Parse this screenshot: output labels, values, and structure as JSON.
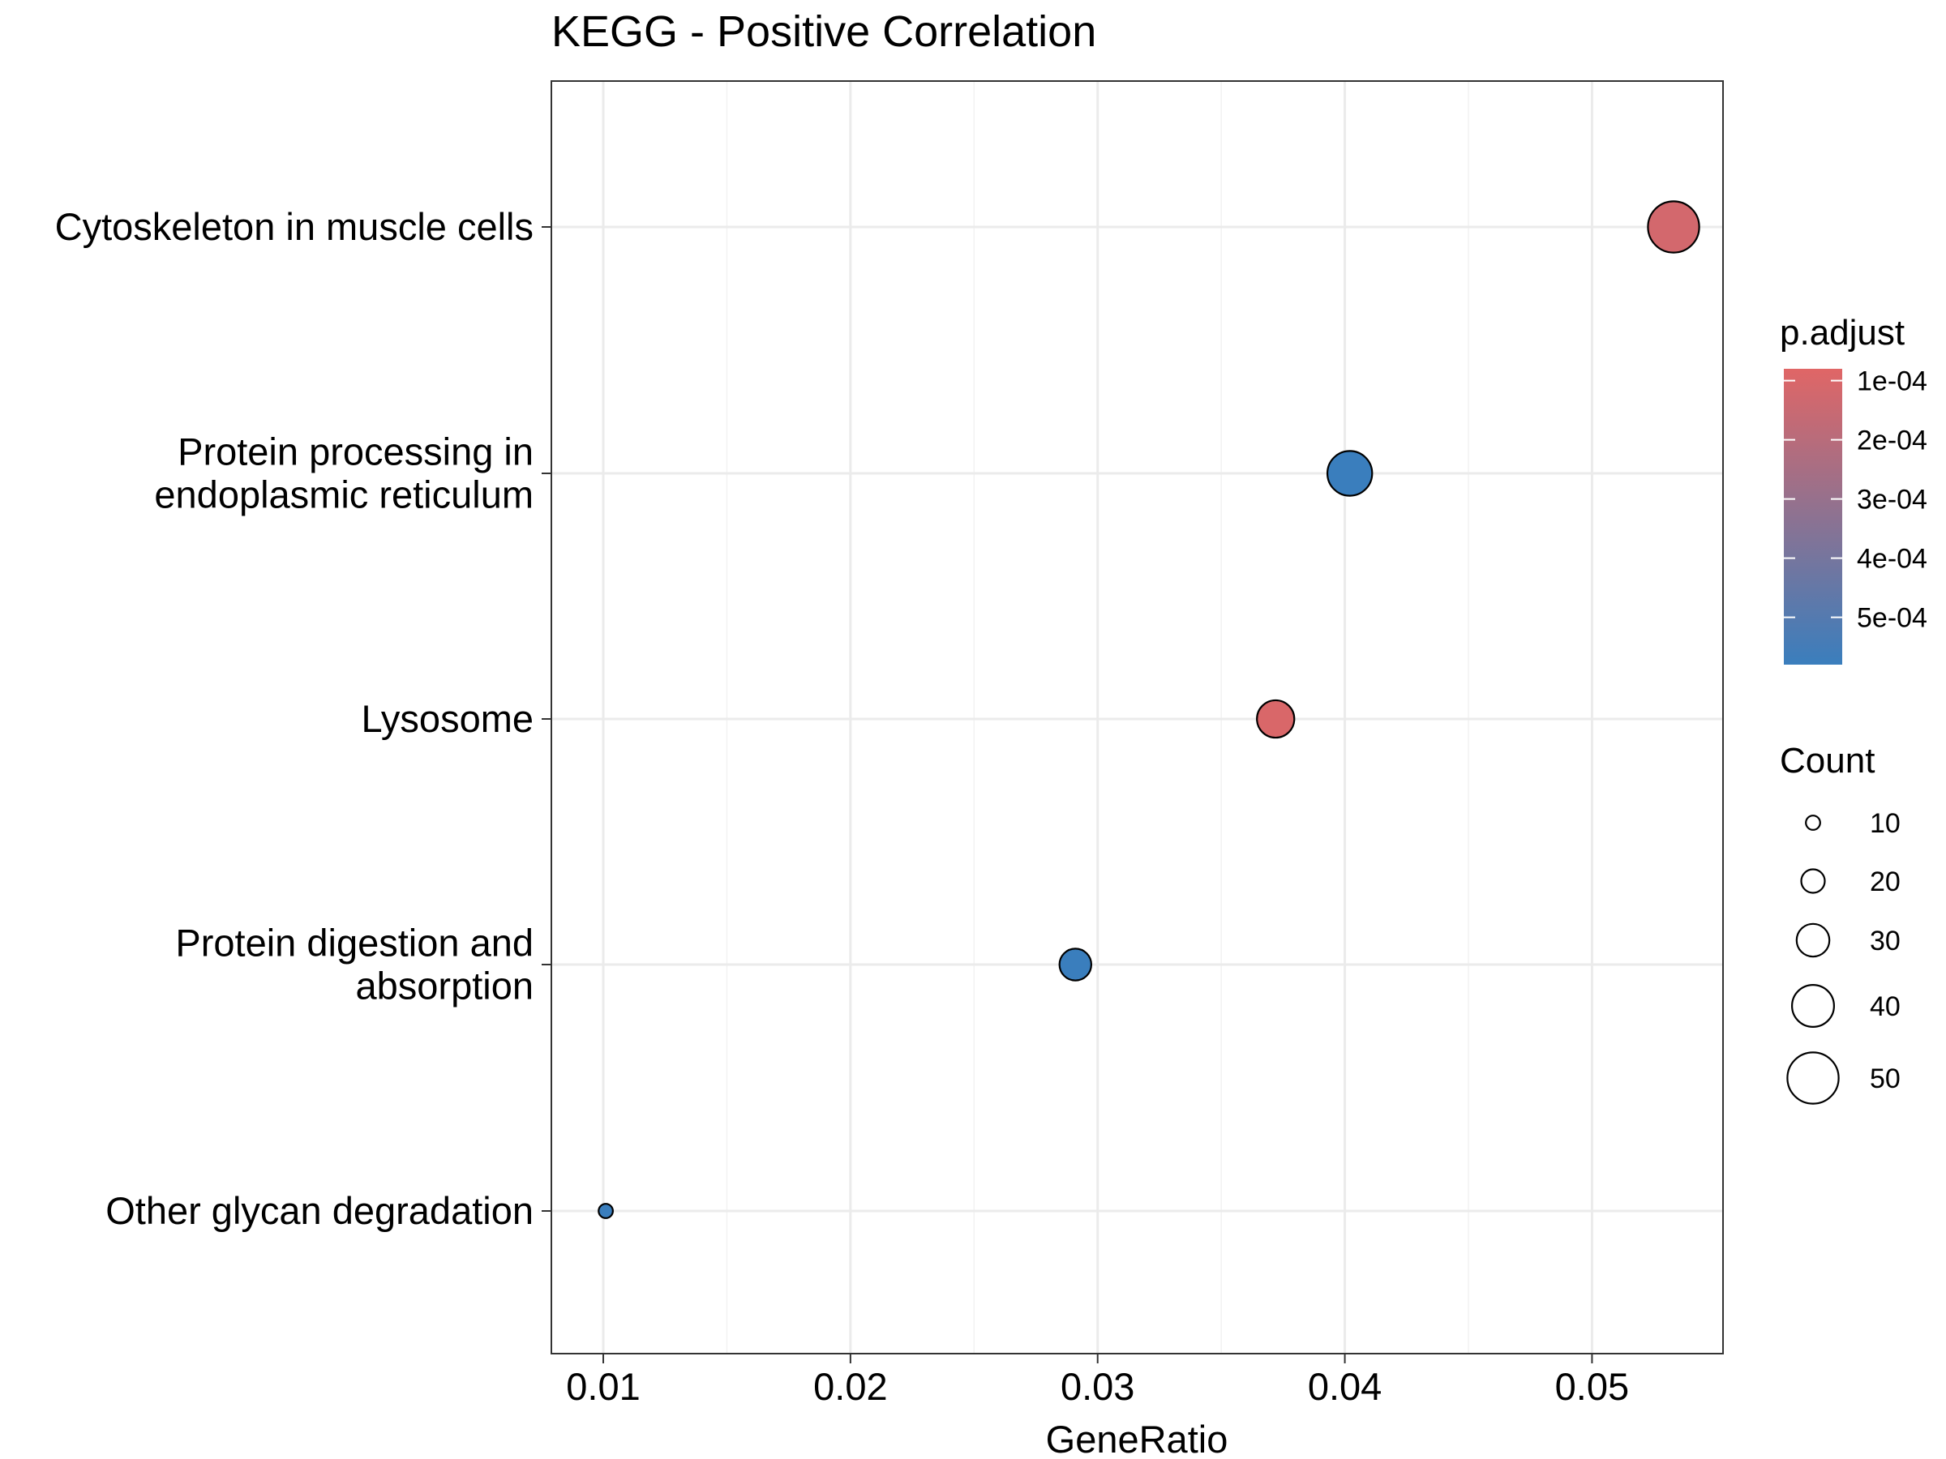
{
  "chart_data": {
    "type": "scatter",
    "title": "KEGG - Positive Correlation",
    "xlabel": "GeneRatio",
    "ylabel": "",
    "xlim": [
      0.0079,
      0.0553
    ],
    "xticks": [
      0.01,
      0.02,
      0.03,
      0.04,
      0.05
    ],
    "xtick_labels": [
      "0.01",
      "0.02",
      "0.03",
      "0.04",
      "0.05"
    ],
    "grid": true,
    "categories": [
      [
        "Cytoskeleton in muscle cells"
      ],
      [
        "Protein processing in",
        "endoplasmic reticulum"
      ],
      [
        "Lysosome"
      ],
      [
        "Protein digestion and",
        "absorption"
      ],
      [
        "Other glycan degradation"
      ]
    ],
    "points": [
      {
        "category_index": 0,
        "gene_ratio": 0.0533,
        "count": 50,
        "p_adjust": 0.00012
      },
      {
        "category_index": 1,
        "gene_ratio": 0.0402,
        "count": 43,
        "p_adjust": 0.00058
      },
      {
        "category_index": 2,
        "gene_ratio": 0.0372,
        "count": 35,
        "p_adjust": 0.0001
      },
      {
        "category_index": 3,
        "gene_ratio": 0.0291,
        "count": 29,
        "p_adjust": 0.00058
      },
      {
        "category_index": 4,
        "gene_ratio": 0.0101,
        "count": 10,
        "p_adjust": 0.00058
      }
    ],
    "color_legend": {
      "title": "p.adjust",
      "range": [
        8e-05,
        0.00058
      ],
      "ticks": [
        0.0001,
        0.0002,
        0.0003,
        0.0004,
        0.0005
      ],
      "tick_labels": [
        "1e-04",
        "2e-04",
        "3e-04",
        "4e-04",
        "5e-04"
      ],
      "low_color": "#E06666",
      "high_color": "#3A7EBD"
    },
    "size_legend": {
      "title": "Count",
      "values": [
        10,
        20,
        30,
        40,
        50
      ],
      "labels": [
        "10",
        "20",
        "30",
        "40",
        "50"
      ]
    },
    "legend_position": "right"
  }
}
